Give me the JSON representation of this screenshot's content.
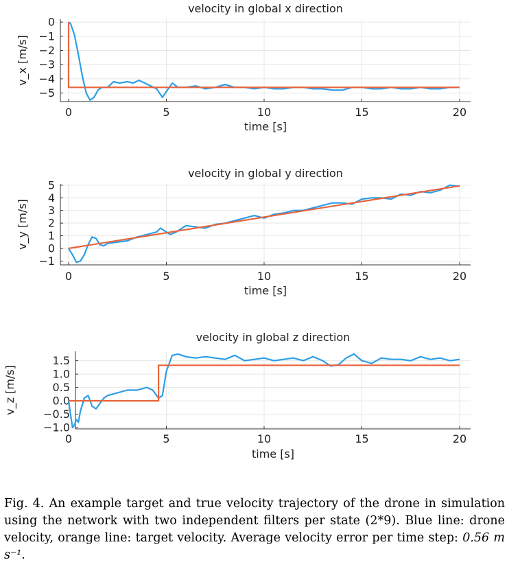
{
  "chart_data": [
    {
      "type": "line",
      "title": "velocity in global x direction",
      "xlabel": "time [s]",
      "ylabel": "v_x [m/s]",
      "xlim": [
        0,
        20
      ],
      "ylim": [
        -5.6,
        0.2
      ],
      "xticks": [
        0,
        5,
        10,
        15,
        20
      ],
      "xtick_labels": [
        "0",
        "5",
        "10",
        "15",
        "20"
      ],
      "yticks": [
        0,
        -1,
        -2,
        -3,
        -4,
        -5
      ],
      "ytick_labels": [
        "0",
        "−1",
        "−2",
        "−3",
        "−4",
        "−5"
      ],
      "grid": true,
      "series": [
        {
          "color": "#2d9ee8",
          "x": [
            0,
            0.1,
            0.3,
            0.5,
            0.7,
            0.9,
            1.1,
            1.3,
            1.5,
            1.7,
            2,
            2.3,
            2.6,
            3,
            3.3,
            3.6,
            3.9,
            4.2,
            4.5,
            4.7,
            4.8,
            5,
            5.3,
            5.6,
            6,
            6.5,
            7,
            7.5,
            8,
            8.5,
            9,
            9.5,
            10,
            10.5,
            11,
            11.5,
            12,
            12.5,
            13,
            13.5,
            14,
            14.5,
            15,
            15.5,
            16,
            16.5,
            17,
            17.5,
            18,
            18.5,
            19,
            19.5,
            20
          ],
          "y": [
            0,
            -0.1,
            -0.9,
            -2.3,
            -3.8,
            -5.0,
            -5.5,
            -5.3,
            -4.8,
            -4.6,
            -4.6,
            -4.2,
            -4.3,
            -4.2,
            -4.3,
            -4.1,
            -4.3,
            -4.5,
            -4.7,
            -5.1,
            -5.3,
            -4.9,
            -4.3,
            -4.6,
            -4.6,
            -4.5,
            -4.7,
            -4.6,
            -4.4,
            -4.6,
            -4.6,
            -4.7,
            -4.6,
            -4.7,
            -4.7,
            -4.6,
            -4.6,
            -4.7,
            -4.7,
            -4.8,
            -4.8,
            -4.6,
            -4.6,
            -4.7,
            -4.7,
            -4.6,
            -4.7,
            -4.7,
            -4.6,
            -4.7,
            -4.7,
            -4.6,
            -4.6
          ]
        },
        {
          "color": "#e8643c",
          "x": [
            0,
            0,
            20
          ],
          "y": [
            0,
            -4.6,
            -4.6
          ]
        }
      ]
    },
    {
      "type": "line",
      "title": "velocity in global y direction",
      "xlabel": "time [s]",
      "ylabel": "v_y [m/s]",
      "xlim": [
        0,
        20
      ],
      "ylim": [
        -1.3,
        5.1
      ],
      "xticks": [
        0,
        5,
        10,
        15,
        20
      ],
      "xtick_labels": [
        "0",
        "5",
        "10",
        "15",
        "20"
      ],
      "yticks": [
        5,
        4,
        3,
        2,
        1,
        0,
        -1
      ],
      "ytick_labels": [
        "5",
        "4",
        "3",
        "2",
        "1",
        "0",
        "−1"
      ],
      "grid": true,
      "series": [
        {
          "color": "#2d9ee8",
          "x": [
            0,
            0.2,
            0.4,
            0.6,
            0.8,
            1,
            1.2,
            1.4,
            1.6,
            1.8,
            2,
            2.5,
            3,
            3.5,
            4,
            4.5,
            4.7,
            4.9,
            5.2,
            5.5,
            6,
            6.5,
            7,
            7.5,
            8,
            8.5,
            9,
            9.5,
            10,
            10.5,
            11,
            11.5,
            12,
            12.5,
            13,
            13.5,
            14,
            14.5,
            15,
            15.5,
            16,
            16.5,
            17,
            17.5,
            18,
            18.5,
            19,
            19.5,
            20
          ],
          "y": [
            0,
            -0.5,
            -1.1,
            -1.0,
            -0.5,
            0.3,
            0.9,
            0.8,
            0.3,
            0.2,
            0.4,
            0.5,
            0.6,
            0.9,
            1.1,
            1.3,
            1.6,
            1.4,
            1.1,
            1.3,
            1.8,
            1.7,
            1.6,
            1.9,
            2.0,
            2.2,
            2.4,
            2.6,
            2.4,
            2.7,
            2.8,
            3.0,
            3.0,
            3.2,
            3.4,
            3.6,
            3.6,
            3.5,
            3.9,
            4.0,
            4.0,
            3.9,
            4.3,
            4.2,
            4.5,
            4.4,
            4.6,
            5.0,
            4.9
          ]
        },
        {
          "color": "#e8643c",
          "x": [
            0,
            20
          ],
          "y": [
            0,
            4.95
          ]
        }
      ]
    },
    {
      "type": "line",
      "title": "velocity in global z direction",
      "xlabel": "time [s]",
      "ylabel": "v_z [m/s]",
      "xlim": [
        0,
        20
      ],
      "ylim": [
        -1.05,
        1.85
      ],
      "xticks": [
        0,
        5,
        10,
        15,
        20
      ],
      "xtick_labels": [
        "0",
        "5",
        "10",
        "15",
        "20"
      ],
      "yticks": [
        1.5,
        1.0,
        0.5,
        0.0,
        -0.5,
        -1.0
      ],
      "ytick_labels": [
        "1.5",
        "1.0",
        "0.5",
        "0.0",
        "−0.5",
        "−1.0"
      ],
      "grid": true,
      "series": [
        {
          "color": "#2d9ee8",
          "x": [
            0,
            0.1,
            0.2,
            0.3,
            0.4,
            0.5,
            0.6,
            0.8,
            1,
            1.2,
            1.4,
            1.6,
            1.8,
            2,
            2.5,
            3,
            3.5,
            4,
            4.3,
            4.5,
            4.6,
            4.8,
            5,
            5.3,
            5.6,
            6,
            6.5,
            7,
            7.5,
            8,
            8.5,
            9,
            9.5,
            10,
            10.5,
            11,
            11.5,
            12,
            12.5,
            13,
            13.4,
            13.8,
            14.2,
            14.6,
            15,
            15.5,
            16,
            16.5,
            17,
            17.5,
            18,
            18.5,
            19,
            19.5,
            20
          ],
          "y": [
            0,
            -0.5,
            -1.0,
            -0.9,
            -0.7,
            -0.8,
            -0.4,
            0.1,
            0.2,
            -0.2,
            -0.3,
            -0.1,
            0.1,
            0.2,
            0.3,
            0.4,
            0.4,
            0.5,
            0.4,
            0.2,
            0.1,
            0.2,
            1.1,
            1.7,
            1.75,
            1.65,
            1.6,
            1.65,
            1.6,
            1.55,
            1.7,
            1.5,
            1.55,
            1.6,
            1.5,
            1.55,
            1.6,
            1.5,
            1.65,
            1.5,
            1.3,
            1.35,
            1.6,
            1.75,
            1.5,
            1.4,
            1.6,
            1.55,
            1.55,
            1.5,
            1.65,
            1.55,
            1.6,
            1.5,
            1.55
          ]
        },
        {
          "color": "#e8643c",
          "x": [
            0,
            4.6,
            4.6,
            20
          ],
          "y": [
            0,
            0,
            1.33,
            1.33
          ]
        }
      ]
    }
  ],
  "caption": {
    "text": "Fig. 4.   An example target and true velocity trajectory of the drone in simulation using the network with two independent filters per state (2*9). Blue line: drone velocity, orange line: target velocity. Average velocity error per time step: ",
    "math": "0.56 m s⁻¹",
    "end": "."
  }
}
